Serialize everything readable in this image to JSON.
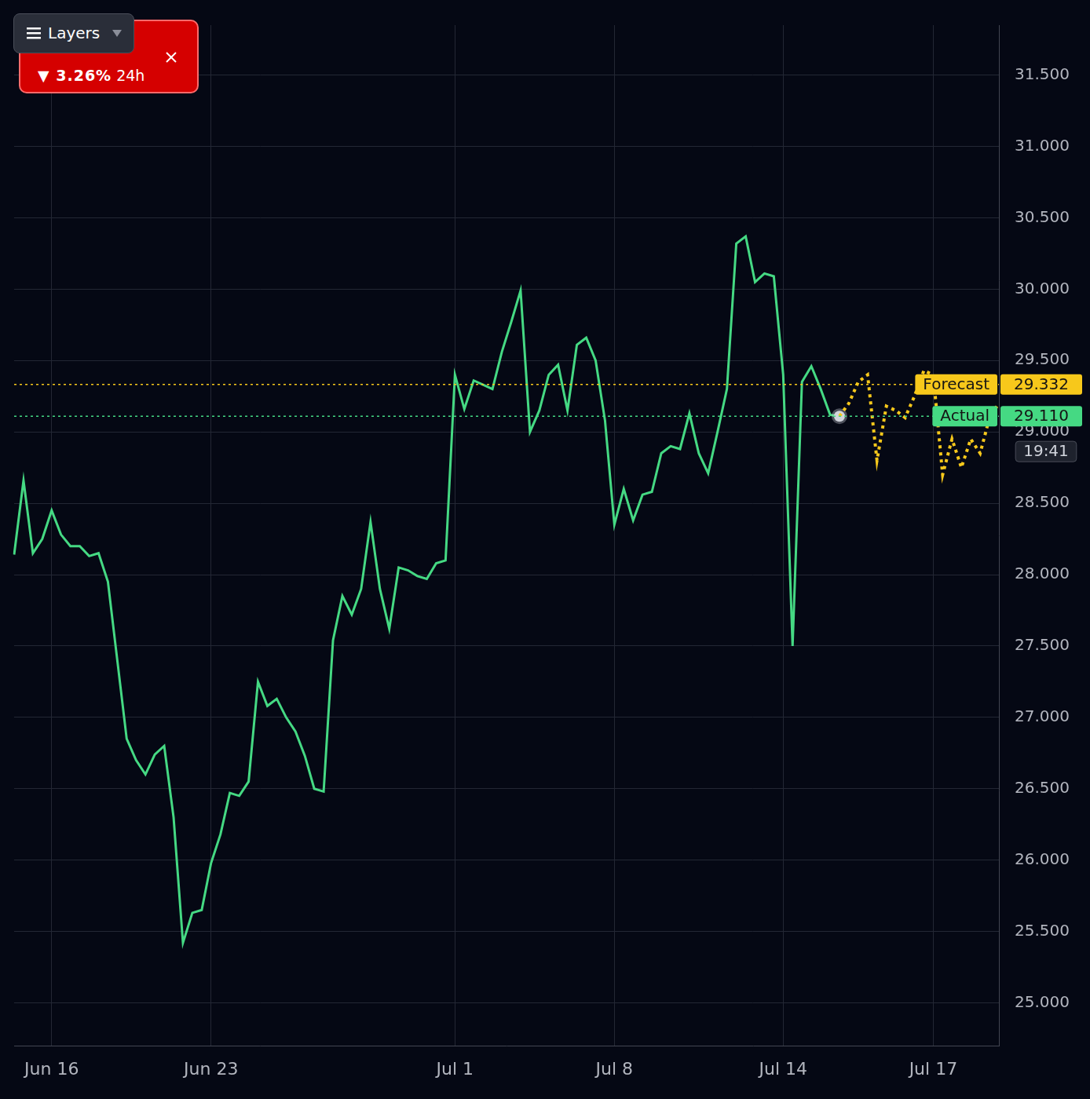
{
  "chart_data": {
    "type": "line",
    "categories": [
      null,
      null,
      null,
      null,
      "Jun 16",
      null,
      null,
      null,
      null,
      null,
      null,
      null,
      null,
      null,
      null,
      null,
      null,
      null,
      null,
      null,
      null,
      "Jun 23",
      null,
      null,
      null,
      null,
      null,
      null,
      null,
      null,
      null,
      null,
      null,
      null,
      null,
      null,
      null,
      null,
      null,
      null,
      null,
      null,
      null,
      null,
      null,
      null,
      null,
      "Jul 1",
      null,
      null,
      null,
      null,
      null,
      null,
      null,
      null,
      null,
      null,
      null,
      null,
      null,
      null,
      null,
      null,
      "Jul 8",
      null,
      null,
      null,
      null,
      null,
      null,
      null,
      null,
      null,
      null,
      null,
      null,
      null,
      null,
      null,
      null,
      null,
      "Jul 14",
      null,
      null,
      null,
      null,
      null,
      null,
      null,
      null,
      null,
      null,
      null,
      null,
      null,
      null,
      null,
      "Jul 17",
      null,
      null,
      null,
      null,
      null,
      null,
      null
    ],
    "series": [
      {
        "name": "Actual",
        "color": "#45d983",
        "line_style": "solid",
        "values": [
          28.14,
          28.66,
          28.15,
          28.25,
          28.45,
          28.28,
          28.2,
          28.2,
          28.13,
          28.15,
          27.95,
          27.4,
          26.85,
          26.7,
          26.6,
          26.74,
          26.8,
          26.3,
          25.42,
          25.63,
          25.65,
          25.98,
          26.18,
          26.47,
          26.45,
          26.55,
          27.25,
          27.08,
          27.13,
          27.0,
          26.9,
          26.73,
          26.5,
          26.48,
          27.54,
          27.85,
          27.72,
          27.9,
          28.37,
          27.9,
          27.62,
          28.05,
          28.03,
          27.99,
          27.97,
          28.08,
          28.1,
          29.4,
          29.16,
          29.36,
          29.33,
          29.3,
          29.56,
          29.77,
          29.99,
          29.0,
          29.15,
          29.4,
          29.47,
          29.15,
          29.61,
          29.66,
          29.5,
          29.08,
          28.35,
          28.6,
          28.38,
          28.56,
          28.58,
          28.85,
          28.9,
          28.88,
          29.13,
          28.85,
          28.71,
          29.0,
          29.3,
          30.32,
          30.37,
          30.05,
          30.11,
          30.09,
          29.4,
          27.5,
          29.35,
          29.46,
          29.3,
          29.12,
          29.11,
          null,
          null,
          null,
          null,
          null,
          null,
          null,
          null,
          null,
          null,
          null,
          null,
          null,
          null,
          null,
          null,
          null
        ]
      },
      {
        "name": "Forecast",
        "color": "#f7c81b",
        "line_style": "dotted",
        "values": [
          null,
          null,
          null,
          null,
          null,
          null,
          null,
          null,
          null,
          null,
          null,
          null,
          null,
          null,
          null,
          null,
          null,
          null,
          null,
          null,
          null,
          null,
          null,
          null,
          null,
          null,
          null,
          null,
          null,
          null,
          null,
          null,
          null,
          null,
          null,
          null,
          null,
          null,
          null,
          null,
          null,
          null,
          null,
          null,
          null,
          null,
          null,
          null,
          null,
          null,
          null,
          null,
          null,
          null,
          null,
          null,
          null,
          null,
          null,
          null,
          null,
          null,
          null,
          null,
          null,
          null,
          null,
          null,
          null,
          null,
          null,
          null,
          null,
          null,
          null,
          null,
          null,
          null,
          null,
          null,
          null,
          null,
          null,
          null,
          null,
          null,
          null,
          null,
          29.11,
          29.2,
          29.35,
          29.4,
          28.8,
          29.18,
          29.15,
          29.1,
          29.25,
          29.43,
          29.4,
          28.7,
          28.95,
          28.75,
          28.95,
          28.85,
          29.1,
          29.2
        ]
      }
    ],
    "ylim": [
      24.7,
      31.85
    ],
    "yticks": [
      {
        "value": 25,
        "label": "25.000"
      },
      {
        "value": 25.5,
        "label": "25.500"
      },
      {
        "value": 26,
        "label": "26.000"
      },
      {
        "value": 26.5,
        "label": "26.500"
      },
      {
        "value": 27,
        "label": "27.000"
      },
      {
        "value": 27.5,
        "label": "27.500"
      },
      {
        "value": 28,
        "label": "28.000"
      },
      {
        "value": 28.5,
        "label": "28.500"
      },
      {
        "value": 29,
        "label": "29.000"
      },
      {
        "value": 29.5,
        "label": "29.500"
      },
      {
        "value": 30,
        "label": "30.000"
      },
      {
        "value": 30.5,
        "label": "30.500"
      },
      {
        "value": 31,
        "label": "31.000"
      },
      {
        "value": 31.5,
        "label": "31.500"
      }
    ],
    "grid": true,
    "legend": null,
    "price_lines": [
      {
        "name": "Forecast",
        "value": 29.332,
        "label": "29.332"
      },
      {
        "name": "Actual",
        "value": 29.11,
        "label": "29.110",
        "countdown": "19:41"
      }
    ]
  },
  "badge": {
    "change": "▼ 3.26%",
    "period": "24h"
  },
  "layers_button": "Layers"
}
